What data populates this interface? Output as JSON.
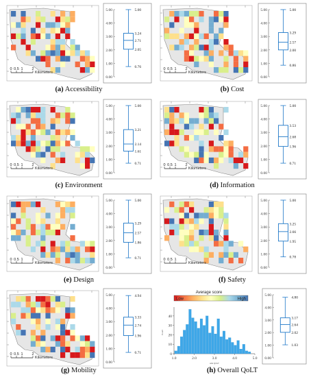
{
  "km_label": "Kilometers",
  "scale_ticks": [
    "0",
    "0.5",
    "1",
    "2"
  ],
  "box_ticks": [
    "0.00",
    "1.00",
    "2.00",
    "3.00",
    "4.00",
    "5.00"
  ],
  "palette": [
    "#d7191c",
    "#f46d43",
    "#fdae61",
    "#fee08b",
    "#ffffbf",
    "#d9ef8b",
    "#abd9e9",
    "#74add1",
    "#4575b4"
  ],
  "box_color": "#1f78c8",
  "map_fill": "#e6e6e6",
  "chart_data": [
    {
      "type": "box",
      "letter": "(a)",
      "name": "Accessibility",
      "max": 5.0,
      "q3": 3.24,
      "median": 2.71,
      "q1": 2.05,
      "min": 0.76,
      "max_label": "5.00",
      "q3_label": "3.24",
      "median_label": "2.71",
      "q1_label": "2.05",
      "min_label": "0.76",
      "ylim": [
        0,
        5
      ]
    },
    {
      "type": "box",
      "letter": "(b)",
      "name": "Cost",
      "max": 5.0,
      "q3": 3.29,
      "median": 2.57,
      "q1": 2.0,
      "min": 0.86,
      "max_label": "5.00",
      "q3_label": "3.29",
      "median_label": "2.57",
      "q1_label": "2.00",
      "min_label": "0.86",
      "ylim": [
        0,
        5
      ]
    },
    {
      "type": "box",
      "letter": "(c)",
      "name": "Environment",
      "max": 5.0,
      "q3": 3.21,
      "median": 2.14,
      "q1": 1.61,
      "min": 0.71,
      "max_label": "5.00",
      "q3_label": "3.21",
      "median_label": "2.14",
      "q1_label": "1.61",
      "min_label": "0.71",
      "ylim": [
        0,
        5
      ]
    },
    {
      "type": "box",
      "letter": "(d)",
      "name": "Information",
      "max": 5.0,
      "q3": 3.53,
      "median": 2.68,
      "q1": 1.96,
      "min": 0.71,
      "max_label": "5.00",
      "q3_label": "3.53",
      "median_label": "2.68",
      "q1_label": "1.96",
      "min_label": "0.71",
      "ylim": [
        0,
        5
      ]
    },
    {
      "type": "box",
      "letter": "(e)",
      "name": "Design",
      "max": 5.0,
      "q3": 3.29,
      "median": 2.57,
      "q1": 1.86,
      "min": 0.71,
      "max_label": "5.00",
      "q3_label": "3.29",
      "median_label": "2.57",
      "q1_label": "1.86",
      "min_label": "0.71",
      "ylim": [
        0,
        5
      ]
    },
    {
      "type": "box",
      "letter": "(f)",
      "name": "Safety",
      "max": 5.0,
      "q3": 3.25,
      "median": 2.66,
      "q1": 1.95,
      "min": 0.78,
      "max_label": "5.00",
      "q3_label": "3.25",
      "median_label": "2.66",
      "q1_label": "1.95",
      "min_label": "0.78",
      "ylim": [
        0,
        5
      ]
    },
    {
      "type": "box",
      "letter": "(g)",
      "name": "Mobility",
      "max": 4.94,
      "q3": 3.33,
      "median": 2.74,
      "q1": 1.96,
      "min": 0.71,
      "max_label": "4.94",
      "q3_label": "3.33",
      "median_label": "2.74",
      "q1_label": "1.96",
      "min_label": "0.71",
      "ylim": [
        0,
        5
      ]
    },
    {
      "type": "box",
      "letter": "(h)",
      "name": "Overall QoLT",
      "max": 4.8,
      "q3": 3.17,
      "median": 2.64,
      "q1": 2.02,
      "min": 1.03,
      "max_label": "4.80",
      "q3_label": "3.17",
      "median_label": "2.64",
      "q1_label": "2.02",
      "min_label": "1.03",
      "ylim": [
        0,
        5
      ]
    },
    {
      "type": "bar",
      "title": "Average score",
      "legend_low": "Low",
      "legend_high": "High",
      "xlabel": "ahd QOLT",
      "ylabel": "Count",
      "xlim": [
        1.0,
        5.0
      ],
      "ylim": [
        0,
        45
      ],
      "x_ticks": [
        "1.0",
        "2.0",
        "3.0",
        "4.0",
        "5.0"
      ],
      "y_ticks": [
        "0",
        "10",
        "20",
        "30",
        "40"
      ],
      "bin_width": 0.14,
      "bins_x": [
        1.1,
        1.24,
        1.38,
        1.52,
        1.66,
        1.8,
        1.94,
        2.08,
        2.22,
        2.36,
        2.5,
        2.64,
        2.78,
        2.92,
        3.06,
        3.2,
        3.34,
        3.48,
        3.62,
        3.76,
        3.9,
        4.04,
        4.18,
        4.32,
        4.46,
        4.6,
        4.74
      ],
      "counts": [
        3,
        8,
        18,
        25,
        31,
        47,
        38,
        34,
        27,
        37,
        30,
        40,
        22,
        29,
        21,
        37,
        18,
        24,
        15,
        17,
        12,
        9,
        14,
        5,
        10,
        3,
        2
      ]
    }
  ]
}
